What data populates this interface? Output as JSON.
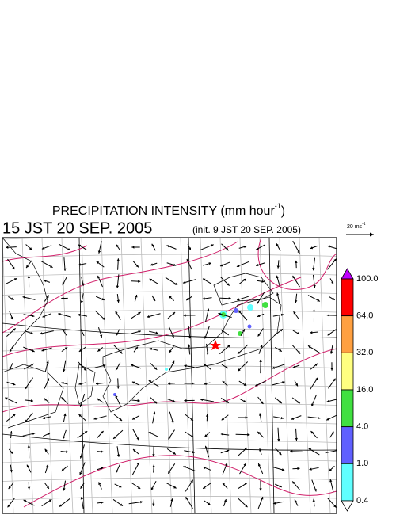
{
  "header": {
    "title": "PRECIPITATION INTENSITY (mm hour",
    "title_exponent": "-1",
    "title_close": ")",
    "valid_time": "15 JST 20 SEP. 2005",
    "init_time": "(init. 9 JST 20 SEP. 2005)"
  },
  "vector_scale": {
    "label": "20 ms",
    "exponent": "-1"
  },
  "legend": {
    "over_color": "#c000ff",
    "under_color": "#ffffff",
    "levels": [
      {
        "label": "100.0",
        "color": "#ff0000"
      },
      {
        "label": "64.0",
        "color": "#ffa040"
      },
      {
        "label": "32.0",
        "color": "#ffff80"
      },
      {
        "label": "16.0",
        "color": "#40e040"
      },
      {
        "label": "4.0",
        "color": "#6060ff"
      },
      {
        "label": "1.0",
        "color": "#60ffff"
      },
      {
        "label": "0.4"
      }
    ]
  }
}
